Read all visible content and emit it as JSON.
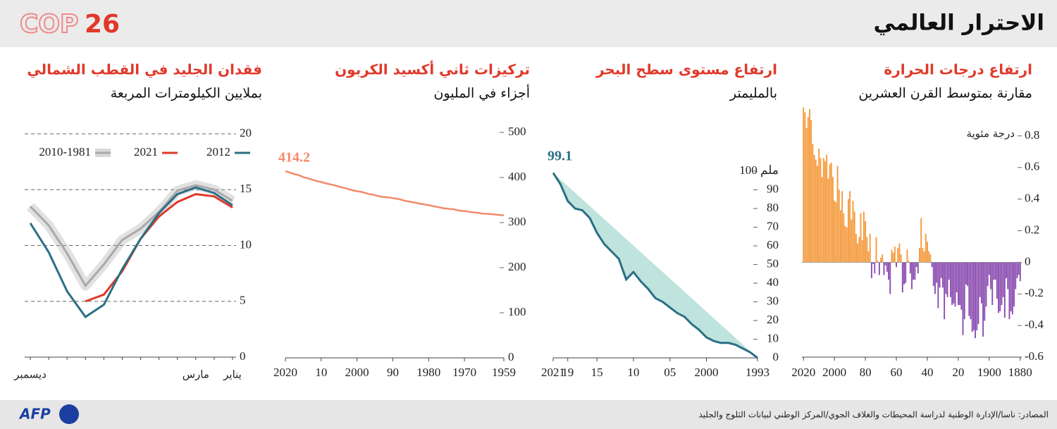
{
  "header": {
    "title": "الاحترار العالمي",
    "logo_text": "COP",
    "logo_number": "26"
  },
  "footer": {
    "source": "المصادر: ناسا/الإدارة الوطنية لدراسة المحيطات والغلاف الجوي/المركز الوطني لبيانات الثلوج والجليد",
    "logo": "AFP"
  },
  "chart_data": [
    {
      "type": "bar",
      "title": "ارتفاع درجات الحرارة",
      "subtitle": "مقارنة بمتوسط القرن العشرين",
      "y_label": "درجة مئوية",
      "positive_color": "#f49a3c",
      "negative_color": "#8a4bb0",
      "xlim": [
        2021,
        1879
      ],
      "ylim": [
        -0.6,
        1.0
      ],
      "xticks": [
        2020,
        2000,
        {
          "value": 1980,
          "label": "80"
        },
        {
          "value": 1960,
          "label": "60"
        },
        {
          "value": 1940,
          "label": "40"
        },
        {
          "value": 1920,
          "label": "20"
        },
        1900,
        1880
      ],
      "yticks": [
        0.8,
        0.6,
        0.4,
        0.2,
        0,
        -0.2,
        -0.4,
        -0.6
      ],
      "x": [
        1880,
        1881,
        1882,
        1883,
        1884,
        1885,
        1886,
        1887,
        1888,
        1889,
        1890,
        1891,
        1892,
        1893,
        1894,
        1895,
        1896,
        1897,
        1898,
        1899,
        1900,
        1901,
        1902,
        1903,
        1904,
        1905,
        1906,
        1907,
        1908,
        1909,
        1910,
        1911,
        1912,
        1913,
        1914,
        1915,
        1916,
        1917,
        1918,
        1919,
        1920,
        1921,
        1922,
        1923,
        1924,
        1925,
        1926,
        1927,
        1928,
        1929,
        1930,
        1931,
        1932,
        1933,
        1934,
        1935,
        1936,
        1937,
        1938,
        1939,
        1940,
        1941,
        1942,
        1943,
        1944,
        1945,
        1946,
        1947,
        1948,
        1949,
        1950,
        1951,
        1952,
        1953,
        1954,
        1955,
        1956,
        1957,
        1958,
        1959,
        1960,
        1961,
        1962,
        1963,
        1964,
        1965,
        1966,
        1967,
        1968,
        1969,
        1970,
        1971,
        1972,
        1973,
        1974,
        1975,
        1976,
        1977,
        1978,
        1979,
        1980,
        1981,
        1982,
        1983,
        1984,
        1985,
        1986,
        1987,
        1988,
        1989,
        1990,
        1991,
        1992,
        1993,
        1994,
        1995,
        1996,
        1997,
        1998,
        1999,
        2000,
        2001,
        2002,
        2003,
        2004,
        2005,
        2006,
        2007,
        2008,
        2009,
        2010,
        2011,
        2012,
        2013,
        2014,
        2015,
        2016,
        2017,
        2018,
        2019,
        2020
      ],
      "values": [
        -0.12,
        -0.08,
        -0.1,
        -0.17,
        -0.28,
        -0.33,
        -0.31,
        -0.36,
        -0.17,
        -0.1,
        -0.35,
        -0.22,
        -0.27,
        -0.31,
        -0.32,
        -0.23,
        -0.11,
        -0.11,
        -0.27,
        -0.17,
        -0.08,
        -0.15,
        -0.28,
        -0.37,
        -0.47,
        -0.26,
        -0.22,
        -0.39,
        -0.43,
        -0.48,
        -0.43,
        -0.44,
        -0.36,
        -0.34,
        -0.15,
        -0.14,
        -0.36,
        -0.46,
        -0.3,
        -0.27,
        -0.27,
        -0.19,
        -0.28,
        -0.26,
        -0.27,
        -0.22,
        -0.11,
        -0.22,
        -0.2,
        -0.36,
        -0.16,
        -0.1,
        -0.16,
        -0.29,
        -0.13,
        -0.2,
        -0.15,
        -0.03,
        0.05,
        0.07,
        0.13,
        0.18,
        0.07,
        0.09,
        0.28,
        0.09,
        -0.07,
        -0.03,
        -0.11,
        -0.11,
        -0.17,
        -0.07,
        0.01,
        0.08,
        -0.13,
        -0.14,
        -0.19,
        0.05,
        0.12,
        0.09,
        -0.03,
        0.1,
        0.06,
        0.08,
        -0.2,
        -0.11,
        -0.06,
        -0.02,
        -0.08,
        0.05,
        0.03,
        -0.08,
        0.01,
        0.16,
        -0.07,
        -0.01,
        -0.1,
        0.18,
        0.07,
        0.16,
        0.26,
        0.32,
        0.14,
        0.31,
        0.16,
        0.12,
        0.18,
        0.32,
        0.39,
        0.27,
        0.45,
        0.4,
        0.22,
        0.23,
        0.31,
        0.45,
        0.33,
        0.46,
        0.61,
        0.38,
        0.39,
        0.54,
        0.63,
        0.62,
        0.53,
        0.68,
        0.64,
        0.66,
        0.54,
        0.66,
        0.72,
        0.61,
        0.65,
        0.68,
        0.75,
        0.9,
        0.97,
        0.92,
        0.85,
        0.95,
        0.98
      ]
    },
    {
      "type": "area",
      "title": "ارتفاع مستوى سطح البحر",
      "subtitle": "بالمليمتر",
      "annotation": "99.1",
      "color": "#2a6f85",
      "fill": "#bfe3dd",
      "xlim": [
        2021,
        1993
      ],
      "ylim": [
        0,
        100
      ],
      "xticks": [
        2021,
        {
          "value": 2019,
          "label": "19"
        },
        {
          "value": 2015,
          "label": "15"
        },
        {
          "value": 2010,
          "label": "10"
        },
        {
          "value": 2005,
          "label": "05"
        },
        2000,
        1993
      ],
      "yticks": [
        0,
        10,
        20,
        30,
        40,
        50,
        60,
        70,
        80,
        90,
        {
          "value": 100,
          "label": "ملم 100"
        }
      ],
      "x": [
        1993,
        1994,
        1995,
        1996,
        1997,
        1998,
        1999,
        2000,
        2001,
        2002,
        2003,
        2004,
        2005,
        2006,
        2007,
        2008,
        2009,
        2010,
        2011,
        2012,
        2013,
        2014,
        2015,
        2016,
        2017,
        2018,
        2019,
        2020,
        2021
      ],
      "values": [
        0,
        3,
        5,
        7,
        8,
        8,
        9,
        11,
        15,
        18,
        22,
        24,
        27,
        30,
        32,
        37,
        41,
        46,
        42,
        53,
        57,
        61,
        67,
        75,
        79,
        80,
        84,
        93,
        99.1
      ]
    },
    {
      "type": "line",
      "title": "تركيزات ثاني أكسيد الكربون",
      "subtitle": "أجزاء في المليون",
      "annotation": "414.2",
      "color": "#f4896b",
      "xlim": [
        2020,
        1959
      ],
      "ylim": [
        0,
        500
      ],
      "xticks": [
        2020,
        {
          "value": 2010,
          "label": "10"
        },
        2000,
        {
          "value": 1990,
          "label": "90"
        },
        1980,
        1970,
        1959
      ],
      "yticks": [
        0,
        100,
        200,
        300,
        400,
        500
      ],
      "x": [
        1959,
        1960,
        1961,
        1962,
        1963,
        1964,
        1965,
        1966,
        1967,
        1968,
        1969,
        1970,
        1971,
        1972,
        1973,
        1974,
        1975,
        1976,
        1977,
        1978,
        1979,
        1980,
        1981,
        1982,
        1983,
        1984,
        1985,
        1986,
        1987,
        1988,
        1989,
        1990,
        1991,
        1992,
        1993,
        1994,
        1995,
        1996,
        1997,
        1998,
        1999,
        2000,
        2001,
        2002,
        2003,
        2004,
        2005,
        2006,
        2007,
        2008,
        2009,
        2010,
        2011,
        2012,
        2013,
        2014,
        2015,
        2016,
        2017,
        2018,
        2019,
        2020
      ],
      "values": [
        316.0,
        316.9,
        317.6,
        318.5,
        319.0,
        319.6,
        320.0,
        321.4,
        322.2,
        323.0,
        324.6,
        325.7,
        326.3,
        327.5,
        329.7,
        330.2,
        331.1,
        332.1,
        333.8,
        335.4,
        336.8,
        338.8,
        340.1,
        341.4,
        343.0,
        344.6,
        346.0,
        347.4,
        349.2,
        351.6,
        353.1,
        354.4,
        355.6,
        356.4,
        357.1,
        358.8,
        360.8,
        362.6,
        363.7,
        366.7,
        368.4,
        369.7,
        371.3,
        373.5,
        375.9,
        377.7,
        379.9,
        382.0,
        384.0,
        385.8,
        387.6,
        390.1,
        391.9,
        393.9,
        396.5,
        398.7,
        401.0,
        404.4,
        406.8,
        408.7,
        411.7,
        414.2
      ]
    },
    {
      "type": "multiline",
      "title": "فقدان الجليد في القطب الشمالي",
      "subtitle": "بملايين الكيلومترات المربعة",
      "ylim": [
        0,
        20
      ],
      "yticks": [
        0,
        5,
        10,
        15,
        20
      ],
      "grid": true,
      "categories": [
        "يناير",
        null,
        "مارس",
        null,
        null,
        null,
        null,
        null,
        null,
        null,
        null,
        "ديسمبر"
      ],
      "series": [
        {
          "name": "2012",
          "color": "#2a6f85",
          "values": [
            13.6,
            14.7,
            15.2,
            14.6,
            12.9,
            10.6,
            7.9,
            4.7,
            3.6,
            5.9,
            9.4,
            12.0
          ]
        },
        {
          "name": "2021",
          "color": "#e0392b",
          "values": [
            13.4,
            14.4,
            14.6,
            13.9,
            12.6,
            10.6,
            7.7,
            5.6,
            5.0,
            null,
            null,
            null
          ]
        },
        {
          "name": "2010-1981",
          "color": "#a9a9a9",
          "band": true,
          "values": [
            14.0,
            15.0,
            15.4,
            14.9,
            13.0,
            11.5,
            10.5,
            8.3,
            6.4,
            9.3,
            11.8,
            13.5
          ]
        }
      ]
    }
  ]
}
